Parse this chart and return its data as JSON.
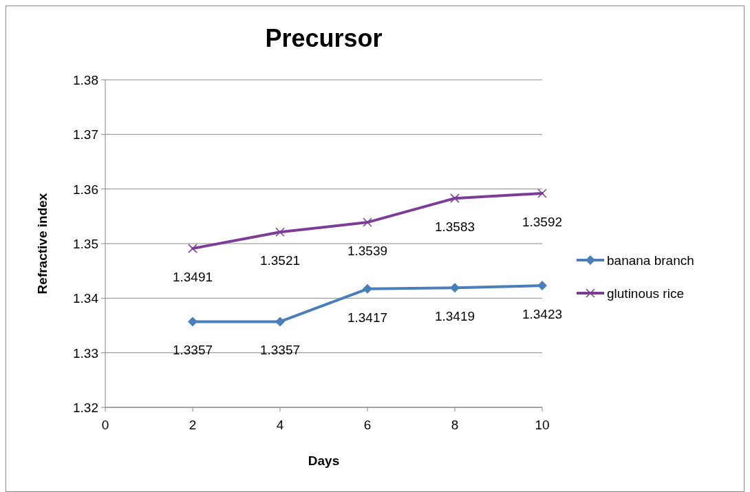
{
  "chart_data": {
    "type": "line",
    "title": "Precursor",
    "xlabel": "Days",
    "ylabel": "Refractive index",
    "x": [
      2,
      4,
      6,
      8,
      10
    ],
    "series": [
      {
        "name": "banana branch",
        "color": "#4a7ebb",
        "values": [
          1.3357,
          1.3357,
          1.3417,
          1.3419,
          1.3423
        ],
        "marker": "diamond"
      },
      {
        "name": "glutinous rice",
        "color": "#7d3c98",
        "values": [
          1.3491,
          1.3521,
          1.3539,
          1.3583,
          1.3592
        ],
        "marker": "cross"
      }
    ],
    "xlim": [
      0,
      10
    ],
    "xticks": [
      0,
      2,
      4,
      6,
      8,
      10
    ],
    "ylim": [
      1.32,
      1.38
    ],
    "yticks": [
      1.32,
      1.33,
      1.34,
      1.35,
      1.36,
      1.37,
      1.38
    ],
    "grid": "y",
    "legend": "right",
    "data_labels": true
  }
}
